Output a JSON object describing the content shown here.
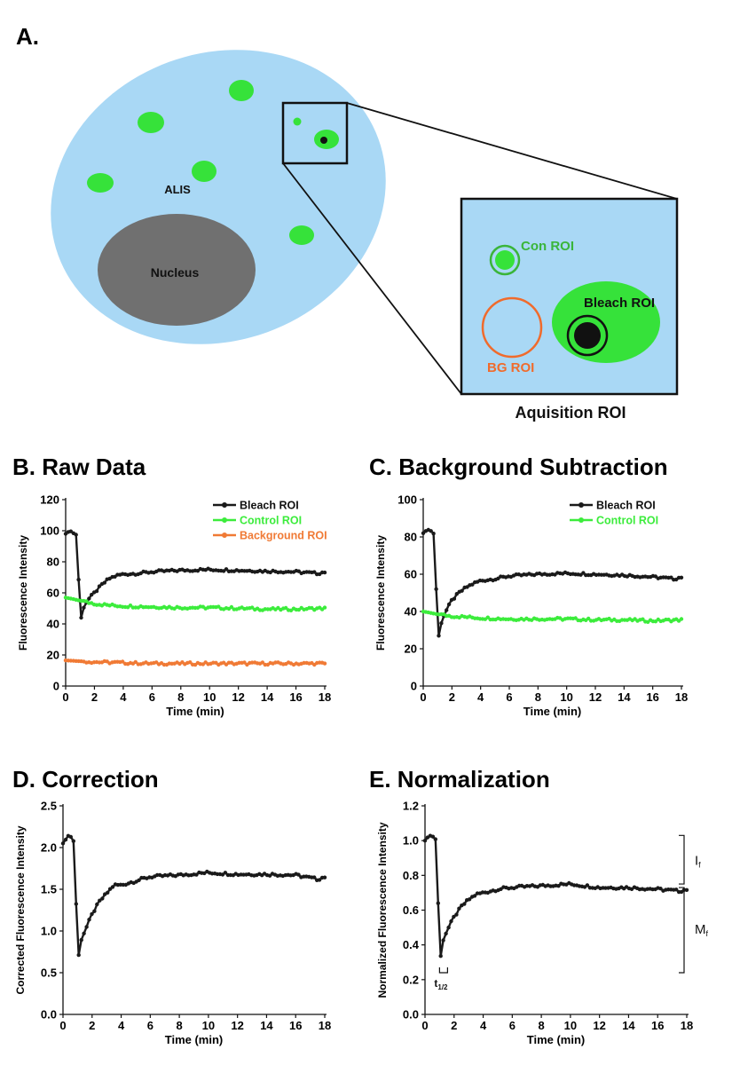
{
  "figure": {
    "panel_a_letter": "A.",
    "cell_label": "ALIS",
    "nucleus_label": "Nucleus",
    "con_roi_label": "Con ROI",
    "bleach_roi_label": "Bleach ROI",
    "bg_roi_label": "BG ROI",
    "acquisition_label": "Aquisition ROI",
    "colors": {
      "cytoplasm": "#a9d8f5",
      "nucleus": "#707070",
      "alis": "#36e23a",
      "bleach": "#111111",
      "background_roi": "#f06b2c",
      "control_roi": "#3ab53a"
    }
  },
  "chart_data": [
    {
      "id": "B",
      "type": "line",
      "title": "B. Raw Data",
      "xlabel": "Time (min)",
      "ylabel": "Fluorescence Intensity",
      "xlim": [
        0,
        18
      ],
      "ylim": [
        0,
        120
      ],
      "xticks": [
        0,
        2,
        4,
        6,
        8,
        10,
        12,
        14,
        16,
        18
      ],
      "yticks": [
        0,
        20,
        40,
        60,
        80,
        100,
        120
      ],
      "ytick_decimals": 0,
      "legend": "top-right",
      "series": [
        {
          "name": "Bleach ROI",
          "color": "#1a1a1a",
          "points": [
            [
              0,
              98
            ],
            [
              0.3,
              100
            ],
            [
              0.6,
              98
            ],
            [
              0.8,
              97
            ],
            [
              1.0,
              40
            ],
            [
              1.2,
              50
            ],
            [
              1.5,
              55
            ],
            [
              2,
              60
            ],
            [
              2.5,
              65
            ],
            [
              3,
              69
            ],
            [
              3.5,
              71
            ],
            [
              4,
              72
            ],
            [
              5,
              72.5
            ],
            [
              6,
              73.5
            ],
            [
              7,
              74
            ],
            [
              8,
              74.5
            ],
            [
              10,
              75
            ],
            [
              12,
              74.5
            ],
            [
              14,
              74
            ],
            [
              16,
              73.5
            ],
            [
              17.5,
              72.5
            ],
            [
              18,
              73.5
            ]
          ]
        },
        {
          "name": "Control ROI",
          "color": "#3cec3c",
          "points": [
            [
              0,
              57
            ],
            [
              1,
              55
            ],
            [
              2,
              53
            ],
            [
              3,
              52
            ],
            [
              4,
              51.5
            ],
            [
              6,
              51
            ],
            [
              8,
              50.5
            ],
            [
              10,
              50.5
            ],
            [
              12,
              50
            ],
            [
              14,
              49.5
            ],
            [
              16,
              49.5
            ],
            [
              18,
              50
            ]
          ]
        },
        {
          "name": "Background ROI",
          "color": "#f07a35",
          "points": [
            [
              0,
              16.5
            ],
            [
              2,
              15.5
            ],
            [
              4,
              15
            ],
            [
              6,
              14.5
            ],
            [
              8,
              14.5
            ],
            [
              10,
              14.5
            ],
            [
              12,
              14.5
            ],
            [
              14,
              14.5
            ],
            [
              16,
              14.5
            ],
            [
              18,
              14.5
            ]
          ]
        }
      ]
    },
    {
      "id": "C",
      "type": "line",
      "title": "C. Background Subtraction",
      "xlabel": "Time (min)",
      "ylabel": "Fluorescence Intensity",
      "xlim": [
        0,
        18
      ],
      "ylim": [
        0,
        100
      ],
      "xticks": [
        0,
        2,
        4,
        6,
        8,
        10,
        12,
        14,
        16,
        18
      ],
      "yticks": [
        0,
        20,
        40,
        60,
        80,
        100
      ],
      "ytick_decimals": 0,
      "legend": "top-right",
      "series": [
        {
          "name": "Bleach ROI",
          "color": "#1a1a1a",
          "points": [
            [
              0,
              82
            ],
            [
              0.3,
              84
            ],
            [
              0.6,
              83
            ],
            [
              0.8,
              81
            ],
            [
              1.0,
              23
            ],
            [
              1.2,
              33
            ],
            [
              1.5,
              39
            ],
            [
              2,
              46
            ],
            [
              2.5,
              50
            ],
            [
              3,
              53
            ],
            [
              3.5,
              55
            ],
            [
              4,
              56.5
            ],
            [
              5,
              57.5
            ],
            [
              6,
              59
            ],
            [
              8,
              60
            ],
            [
              10,
              60.5
            ],
            [
              12,
              60
            ],
            [
              14,
              59.5
            ],
            [
              16,
              58.5
            ],
            [
              17.5,
              57.5
            ],
            [
              18,
              58.5
            ]
          ]
        },
        {
          "name": "Control ROI",
          "color": "#3cec3c",
          "points": [
            [
              0,
              40
            ],
            [
              1,
              38.5
            ],
            [
              2,
              37.5
            ],
            [
              3,
              37
            ],
            [
              4,
              36.5
            ],
            [
              6,
              36
            ],
            [
              8,
              36
            ],
            [
              10,
              36
            ],
            [
              12,
              35.5
            ],
            [
              14,
              35.5
            ],
            [
              16,
              35
            ],
            [
              18,
              35.5
            ]
          ]
        }
      ]
    },
    {
      "id": "D",
      "type": "line",
      "title": "D. Correction",
      "xlabel": "Time (min)",
      "ylabel": "Corrected Fluorescence Intensity",
      "xlim": [
        0,
        18
      ],
      "ylim": [
        0,
        2.5
      ],
      "xticks": [
        0,
        2,
        4,
        6,
        8,
        10,
        12,
        14,
        16,
        18
      ],
      "yticks": [
        0,
        0.5,
        1.0,
        1.5,
        2.0,
        2.5
      ],
      "ytick_decimals": 1,
      "series": [
        {
          "name": "Bleach ROI",
          "color": "#1a1a1a",
          "points": [
            [
              0,
              2.05
            ],
            [
              0.2,
              2.1
            ],
            [
              0.4,
              2.15
            ],
            [
              0.6,
              2.12
            ],
            [
              0.8,
              2.05
            ],
            [
              1.0,
              0.6
            ],
            [
              1.2,
              0.88
            ],
            [
              1.5,
              1.0
            ],
            [
              2,
              1.2
            ],
            [
              2.5,
              1.35
            ],
            [
              3,
              1.45
            ],
            [
              3.5,
              1.55
            ],
            [
              4,
              1.55
            ],
            [
              5,
              1.6
            ],
            [
              6,
              1.65
            ],
            [
              8,
              1.67
            ],
            [
              10,
              1.7
            ],
            [
              12,
              1.68
            ],
            [
              14,
              1.68
            ],
            [
              16,
              1.67
            ],
            [
              17.5,
              1.62
            ],
            [
              18,
              1.65
            ]
          ]
        }
      ]
    },
    {
      "id": "E",
      "type": "line",
      "title": "E. Normalization",
      "xlabel": "Time (min)",
      "ylabel": "Normalized Fluorescence Intensity",
      "xlim": [
        0,
        18
      ],
      "ylim": [
        0,
        1.2
      ],
      "xticks": [
        0,
        2,
        4,
        6,
        8,
        10,
        12,
        14,
        16,
        18
      ],
      "yticks": [
        0,
        0.2,
        0.4,
        0.6,
        0.8,
        1.0,
        1.2
      ],
      "ytick_decimals": 1,
      "series": [
        {
          "name": "Bleach ROI",
          "color": "#1a1a1a",
          "points": [
            [
              0,
              1.0
            ],
            [
              0.2,
              1.02
            ],
            [
              0.4,
              1.03
            ],
            [
              0.6,
              1.02
            ],
            [
              0.8,
              1.0
            ],
            [
              1.0,
              0.28
            ],
            [
              1.2,
              0.42
            ],
            [
              1.5,
              0.48
            ],
            [
              2,
              0.56
            ],
            [
              2.5,
              0.62
            ],
            [
              3,
              0.66
            ],
            [
              3.5,
              0.69
            ],
            [
              4,
              0.7
            ],
            [
              5,
              0.72
            ],
            [
              6,
              0.73
            ],
            [
              8,
              0.74
            ],
            [
              10,
              0.75
            ],
            [
              12,
              0.73
            ],
            [
              14,
              0.73
            ],
            [
              16,
              0.72
            ],
            [
              17.5,
              0.71
            ],
            [
              18,
              0.72
            ]
          ]
        }
      ],
      "annotations": {
        "half_time_label": "t",
        "half_time_subscript": "1/2",
        "immobile_label": "I",
        "immobile_subscript": "f",
        "mobile_label": "M",
        "mobile_subscript": "f"
      }
    }
  ]
}
